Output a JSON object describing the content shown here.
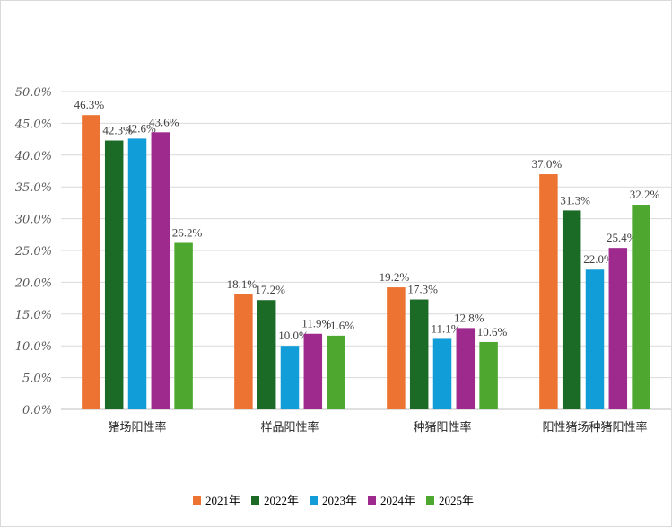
{
  "chart_data": {
    "type": "bar",
    "title": "",
    "xlabel": "",
    "ylabel": "",
    "ylim": [
      0,
      50
    ],
    "yticks": [
      "0.0%",
      "5.0%",
      "10.0%",
      "15.0%",
      "20.0%",
      "25.0%",
      "30.0%",
      "35.0%",
      "40.0%",
      "45.0%",
      "50.0%"
    ],
    "grid": true,
    "legend_position": "bottom",
    "categories": [
      "猪场阳性率",
      "样品阳性率",
      "种猪阳性率",
      "阳性猪场种猪阳性率"
    ],
    "series": [
      {
        "name": "2021年",
        "color": "#ED7333",
        "values": [
          46.3,
          18.1,
          19.2,
          37.0
        ],
        "labels": [
          "46.3%",
          "18.1%",
          "19.2%",
          "37.0%"
        ]
      },
      {
        "name": "2022年",
        "color": "#1B6B27",
        "values": [
          42.3,
          17.2,
          17.3,
          31.3
        ],
        "labels": [
          "42.3%",
          "17.2%",
          "17.3%",
          "31.3%"
        ]
      },
      {
        "name": "2023年",
        "color": "#119ED8",
        "values": [
          42.6,
          10.0,
          11.1,
          22.0
        ],
        "labels": [
          "42.6%",
          "10.0%",
          "11.1%",
          "22.0%"
        ]
      },
      {
        "name": "2024年",
        "color": "#9E2A8E",
        "values": [
          43.6,
          11.9,
          12.8,
          25.4
        ],
        "labels": [
          "43.6%",
          "11.9%",
          "12.8%",
          "25.4%"
        ]
      },
      {
        "name": "2025年",
        "color": "#4EA72E",
        "values": [
          26.2,
          11.6,
          10.6,
          32.2
        ],
        "labels": [
          "26.2%",
          "11.6%",
          "10.6%",
          "32.2%"
        ]
      }
    ]
  }
}
